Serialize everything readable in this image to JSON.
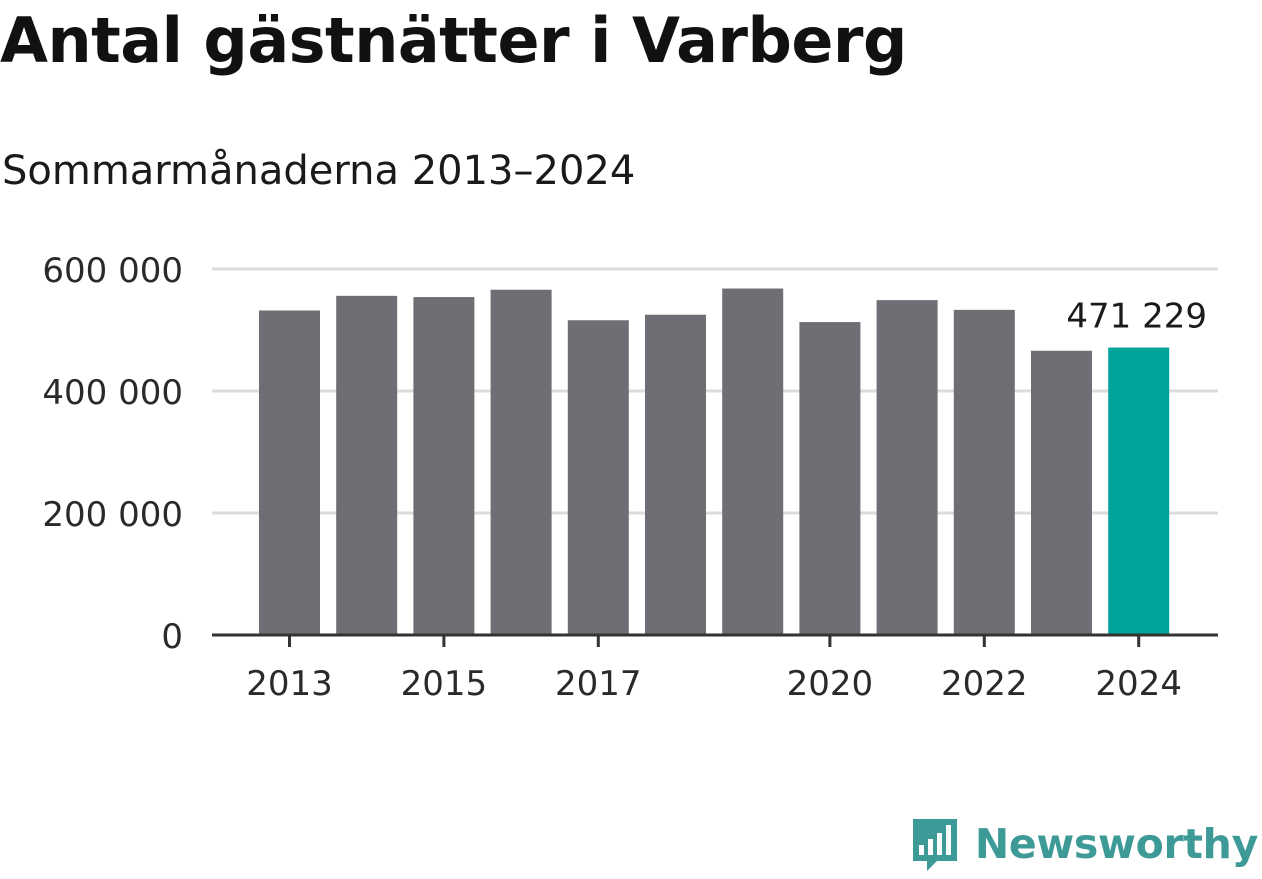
{
  "title": "Antal gästnätter i Varberg",
  "subtitle": "Sommarmånaderna 2013–2024",
  "brand": {
    "name": "Newsworthy",
    "color": "#3d9a96"
  },
  "colors": {
    "bar": "#6f6e74",
    "highlight": "#00a49a",
    "grid": "#dcdcdc",
    "axis": "#333333"
  },
  "chart_data": {
    "type": "bar",
    "title": "Antal gästnätter i Varberg",
    "subtitle": "Sommarmånaderna 2013–2024",
    "categories": [
      "2013",
      "2014",
      "2015",
      "2016",
      "2017",
      "2018",
      "2019",
      "2020",
      "2021",
      "2022",
      "2023",
      "2024"
    ],
    "values": [
      532000,
      556000,
      554000,
      566000,
      516000,
      525000,
      568000,
      513000,
      549000,
      533000,
      466000,
      471229
    ],
    "x_tick_labels": [
      "2013",
      "",
      "2015",
      "",
      "2017",
      "",
      "",
      "2020",
      "",
      "2022",
      "",
      "2024"
    ],
    "y_ticks": [
      0,
      200000,
      400000,
      600000
    ],
    "y_tick_labels": [
      "0",
      "200 000",
      "400 000",
      "600 000"
    ],
    "ylim": [
      0,
      600000
    ],
    "highlight_index": 11,
    "annotation": "471 229",
    "grid": true,
    "legend": "none"
  }
}
